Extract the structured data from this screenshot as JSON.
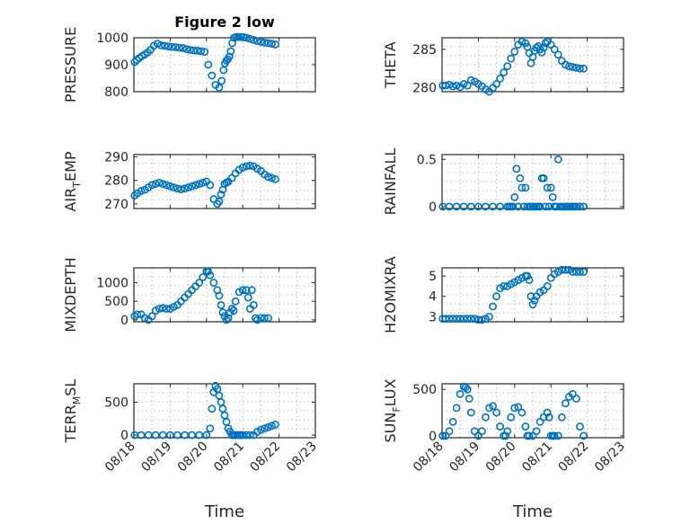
{
  "figure": {
    "title": "Figure 2 low",
    "marker_color": "#0072BD"
  },
  "chart_data": [
    {
      "type": "scatter",
      "id": "pressure",
      "ylabel": "PRESSURE",
      "ylabel_sub": "",
      "ylim": [
        800,
        1000
      ],
      "yticks": [
        800,
        900,
        1000
      ],
      "xaxis": false,
      "xlim": [
        0,
        5
      ],
      "xticks": [
        0,
        1,
        2,
        3,
        4,
        5
      ],
      "x": [
        0.02,
        0.08,
        0.15,
        0.22,
        0.3,
        0.38,
        0.46,
        0.55,
        0.65,
        0.75,
        0.85,
        0.95,
        1.05,
        1.15,
        1.25,
        1.35,
        1.45,
        1.55,
        1.65,
        1.75,
        1.85,
        1.95,
        2.05,
        2.15,
        2.25,
        2.35,
        2.42,
        2.47,
        2.51,
        2.55,
        2.59,
        2.63,
        2.67,
        2.71,
        2.76,
        2.82,
        2.88,
        2.95,
        3.02,
        3.1,
        3.2,
        3.3,
        3.4,
        3.5,
        3.6,
        3.7,
        3.8,
        3.9
      ],
      "y": [
        910,
        918,
        925,
        932,
        938,
        945,
        955,
        970,
        978,
        972,
        970,
        968,
        966,
        965,
        963,
        962,
        958,
        955,
        953,
        952,
        950,
        948,
        900,
        860,
        825,
        815,
        840,
        880,
        905,
        915,
        920,
        930,
        950,
        980,
        1000,
        1003,
        1003,
        1003,
        1002,
        1000,
        996,
        992,
        988,
        985,
        982,
        980,
        978,
        975
      ]
    },
    {
      "type": "scatter",
      "id": "theta",
      "ylabel": "THETA",
      "ylabel_sub": "",
      "ylim": [
        279.5,
        286.5
      ],
      "yticks": [
        280,
        285
      ],
      "xaxis": false,
      "xlim": [
        0,
        5
      ],
      "xticks": [
        0,
        1,
        2,
        3,
        4,
        5
      ],
      "x": [
        0.02,
        0.1,
        0.2,
        0.3,
        0.4,
        0.5,
        0.6,
        0.7,
        0.8,
        0.9,
        1.0,
        1.1,
        1.2,
        1.3,
        1.4,
        1.5,
        1.6,
        1.7,
        1.8,
        1.9,
        2.0,
        2.1,
        2.2,
        2.3,
        2.35,
        2.4,
        2.45,
        2.5,
        2.55,
        2.6,
        2.65,
        2.7,
        2.75,
        2.8,
        2.85,
        2.9,
        3.0,
        3.1,
        3.2,
        3.3,
        3.4,
        3.5,
        3.6,
        3.7,
        3.8,
        3.9
      ],
      "y": [
        280.3,
        280.3,
        280.4,
        280.2,
        280.3,
        280.1,
        280.5,
        280.3,
        281.0,
        280.8,
        280.5,
        280.2,
        279.8,
        279.5,
        280.0,
        280.5,
        281.2,
        282.0,
        282.8,
        283.8,
        284.7,
        285.6,
        286.0,
        285.8,
        285.3,
        284.5,
        283.2,
        284.0,
        284.8,
        285.2,
        285.4,
        285.0,
        284.6,
        285.2,
        285.8,
        286.0,
        285.6,
        285.0,
        284.3,
        283.5,
        283.0,
        282.8,
        282.7,
        282.6,
        282.5,
        282.5
      ]
    },
    {
      "type": "scatter",
      "id": "air_temp",
      "ylabel": "AIR",
      "ylabel_sub": "T",
      "ylabel_tail": "EMP",
      "ylim": [
        268,
        291
      ],
      "yticks": [
        270,
        280,
        290
      ],
      "xaxis": false,
      "xlim": [
        0,
        5
      ],
      "xticks": [
        0,
        1,
        2,
        3,
        4,
        5
      ],
      "x": [
        0.02,
        0.1,
        0.2,
        0.3,
        0.4,
        0.5,
        0.6,
        0.7,
        0.8,
        0.9,
        1.0,
        1.1,
        1.2,
        1.3,
        1.4,
        1.5,
        1.6,
        1.7,
        1.8,
        1.9,
        2.0,
        2.1,
        2.2,
        2.3,
        2.35,
        2.4,
        2.45,
        2.5,
        2.55,
        2.6,
        2.7,
        2.8,
        2.9,
        3.0,
        3.1,
        3.2,
        3.3,
        3.4,
        3.5,
        3.6,
        3.7,
        3.8,
        3.9
      ],
      "y": [
        273.5,
        274.5,
        275.5,
        276.0,
        277.0,
        278.0,
        278.5,
        279.0,
        278.5,
        278.0,
        277.5,
        277.0,
        276.5,
        276.2,
        276.5,
        277.0,
        277.5,
        278.0,
        278.5,
        279.0,
        279.5,
        278.0,
        272.0,
        270.0,
        271.0,
        274.0,
        276.0,
        278.5,
        279.0,
        279.5,
        281.0,
        283.0,
        284.5,
        285.5,
        286.0,
        286.3,
        286.0,
        285.0,
        284.0,
        282.5,
        281.5,
        281.0,
        280.5
      ]
    },
    {
      "type": "scatter",
      "id": "rainfall",
      "ylabel": "RAINFALL",
      "ylabel_sub": "",
      "ylim": [
        -0.02,
        0.55
      ],
      "yticks": [
        0,
        0.5
      ],
      "ytick_labels": [
        "0",
        "0.5"
      ],
      "xaxis": false,
      "xlim": [
        0,
        5
      ],
      "xticks": [
        0,
        1,
        2,
        3,
        4,
        5
      ],
      "x": [
        0.02,
        0.2,
        0.4,
        0.6,
        0.8,
        1.0,
        1.2,
        1.4,
        1.6,
        1.8,
        1.85,
        1.9,
        1.95,
        2.0,
        2.05,
        2.1,
        2.15,
        2.2,
        2.25,
        2.3,
        2.35,
        2.4,
        2.45,
        2.5,
        2.55,
        2.6,
        2.65,
        2.7,
        2.75,
        2.8,
        2.85,
        2.9,
        2.95,
        3.0,
        3.05,
        3.1,
        3.15,
        3.2,
        3.25,
        3.3,
        3.35,
        3.4,
        3.45,
        3.5,
        3.55,
        3.6,
        3.65,
        3.7,
        3.8,
        3.9
      ],
      "y": [
        0,
        0,
        0,
        0,
        0,
        0,
        0,
        0,
        0,
        0,
        0,
        0,
        0,
        0.1,
        0.4,
        0,
        0.3,
        0.2,
        0,
        0.2,
        0,
        0,
        0,
        0,
        0,
        0,
        0,
        0,
        0.3,
        0.3,
        0,
        0.2,
        0,
        0.2,
        0.1,
        0,
        0,
        0.5,
        0,
        0,
        0,
        0,
        0,
        0,
        0,
        0,
        0,
        0,
        0,
        0
      ]
    },
    {
      "type": "scatter",
      "id": "mixdepth",
      "ylabel": "MIXDEPTH",
      "ylabel_sub": "",
      "ylim": [
        -50,
        1400
      ],
      "yticks": [
        0,
        500,
        1000
      ],
      "xaxis": false,
      "xlim": [
        0,
        5
      ],
      "xticks": [
        0,
        1,
        2,
        3,
        4,
        5
      ],
      "x": [
        0.02,
        0.1,
        0.2,
        0.3,
        0.4,
        0.5,
        0.6,
        0.7,
        0.8,
        0.9,
        1.0,
        1.1,
        1.2,
        1.3,
        1.4,
        1.5,
        1.6,
        1.7,
        1.8,
        1.9,
        2.0,
        2.05,
        2.1,
        2.2,
        2.3,
        2.35,
        2.4,
        2.45,
        2.5,
        2.55,
        2.6,
        2.65,
        2.7,
        2.75,
        2.8,
        2.9,
        3.0,
        3.1,
        3.15,
        3.2,
        3.25,
        3.3,
        3.35,
        3.4,
        3.5,
        3.6,
        3.7
      ],
      "y": [
        100,
        150,
        150,
        50,
        0,
        100,
        250,
        300,
        320,
        300,
        300,
        350,
        400,
        500,
        600,
        700,
        800,
        900,
        1000,
        1150,
        1300,
        1300,
        1200,
        1000,
        800,
        650,
        400,
        200,
        100,
        0,
        50,
        200,
        300,
        250,
        500,
        750,
        800,
        800,
        600,
        300,
        800,
        400,
        50,
        0,
        50,
        50,
        50
      ]
    },
    {
      "type": "scatter",
      "id": "h2omixra",
      "ylabel": "H2OMIXRA",
      "ylabel_sub": "",
      "ylim": [
        2.75,
        5.4
      ],
      "yticks": [
        3,
        4,
        5
      ],
      "xaxis": false,
      "xlim": [
        0,
        5
      ],
      "xticks": [
        0,
        1,
        2,
        3,
        4,
        5
      ],
      "x": [
        0.02,
        0.1,
        0.2,
        0.3,
        0.4,
        0.5,
        0.6,
        0.7,
        0.8,
        0.9,
        1.0,
        1.1,
        1.2,
        1.3,
        1.4,
        1.5,
        1.6,
        1.7,
        1.8,
        1.9,
        2.0,
        2.1,
        2.2,
        2.3,
        2.35,
        2.4,
        2.45,
        2.5,
        2.55,
        2.6,
        2.7,
        2.8,
        2.9,
        3.0,
        3.1,
        3.2,
        3.3,
        3.4,
        3.5,
        3.6,
        3.7,
        3.8,
        3.9
      ],
      "y": [
        2.9,
        2.9,
        2.9,
        2.9,
        2.9,
        2.9,
        2.9,
        2.9,
        2.9,
        2.9,
        2.85,
        2.85,
        2.9,
        3.0,
        3.5,
        4.0,
        4.4,
        4.5,
        4.5,
        4.6,
        4.7,
        4.8,
        4.9,
        5.0,
        5.0,
        4.8,
        4.0,
        3.6,
        3.8,
        4.0,
        4.2,
        4.3,
        4.5,
        4.9,
        5.1,
        5.2,
        5.3,
        5.3,
        5.3,
        5.2,
        5.2,
        5.2,
        5.2
      ]
    },
    {
      "type": "scatter",
      "id": "terr_msl",
      "ylabel": "TERR",
      "ylabel_sub": "M",
      "ylabel_tail": "SL",
      "ylim": [
        -40,
        780
      ],
      "yticks": [
        0,
        500
      ],
      "xaxis": true,
      "xlim": [
        0,
        5
      ],
      "xticks": [
        0,
        1,
        2,
        3,
        4,
        5
      ],
      "xtick_labels": [
        "08/18",
        "08/19",
        "08/20",
        "08/21",
        "08/22",
        "08/23"
      ],
      "xlabel": "Time",
      "x": [
        0.02,
        0.2,
        0.4,
        0.6,
        0.8,
        1.0,
        1.2,
        1.4,
        1.6,
        1.8,
        2.0,
        2.1,
        2.15,
        2.2,
        2.25,
        2.3,
        2.35,
        2.4,
        2.45,
        2.5,
        2.55,
        2.6,
        2.65,
        2.7,
        2.75,
        2.8,
        2.85,
        2.9,
        2.95,
        3.0,
        3.1,
        3.2,
        3.3,
        3.4,
        3.5,
        3.6,
        3.7,
        3.8,
        3.9
      ],
      "y": [
        0,
        0,
        0,
        0,
        0,
        0,
        0,
        0,
        0,
        0,
        0,
        100,
        400,
        650,
        750,
        700,
        600,
        500,
        400,
        300,
        200,
        100,
        50,
        0,
        0,
        0,
        0,
        0,
        0,
        0,
        0,
        0,
        0,
        50,
        80,
        100,
        120,
        140,
        160
      ]
    },
    {
      "type": "scatter",
      "id": "sun_flux",
      "ylabel": "SUN",
      "ylabel_sub": "F",
      "ylabel_tail": "LUX",
      "ylim": [
        -20,
        560
      ],
      "yticks": [
        0,
        500
      ],
      "xaxis": true,
      "xlim": [
        0,
        5
      ],
      "xticks": [
        0,
        1,
        2,
        3,
        4,
        5
      ],
      "xtick_labels": [
        "08/18",
        "08/19",
        "08/20",
        "08/21",
        "08/22",
        "08/23"
      ],
      "xlabel": "Time",
      "x": [
        0.02,
        0.1,
        0.2,
        0.3,
        0.4,
        0.5,
        0.6,
        0.65,
        0.7,
        0.75,
        0.8,
        0.9,
        1.0,
        1.1,
        1.2,
        1.3,
        1.4,
        1.5,
        1.6,
        1.7,
        1.75,
        1.8,
        1.9,
        2.0,
        2.1,
        2.2,
        2.3,
        2.35,
        2.4,
        2.5,
        2.6,
        2.7,
        2.8,
        2.9,
        2.95,
        3.0,
        3.05,
        3.1,
        3.2,
        3.3,
        3.4,
        3.5,
        3.6,
        3.7,
        3.8,
        3.9
      ],
      "y": [
        0,
        0,
        50,
        150,
        300,
        450,
        530,
        520,
        500,
        400,
        250,
        50,
        0,
        50,
        200,
        300,
        320,
        250,
        100,
        0,
        0,
        50,
        200,
        300,
        310,
        250,
        100,
        0,
        0,
        0,
        50,
        150,
        200,
        250,
        200,
        0,
        0,
        0,
        0,
        200,
        350,
        420,
        450,
        400,
        100,
        0
      ]
    }
  ]
}
